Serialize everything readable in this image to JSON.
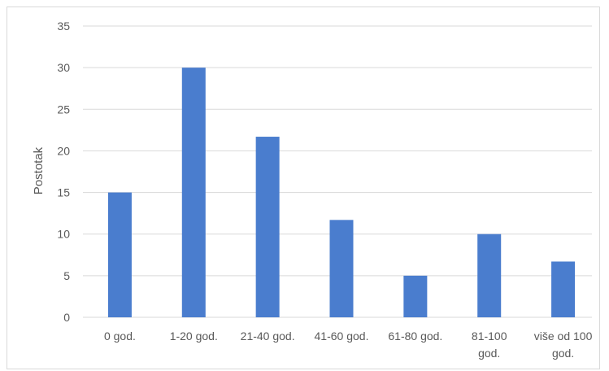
{
  "chart_data": {
    "type": "bar",
    "title": "",
    "xlabel": "",
    "ylabel": "Postotak",
    "ylim": [
      0,
      35
    ],
    "yticks": [
      0,
      5,
      10,
      15,
      20,
      25,
      30,
      35
    ],
    "grid": true,
    "legend": "none",
    "categories": [
      [
        "0 god."
      ],
      [
        "1-20 god."
      ],
      [
        "21-40 god."
      ],
      [
        "41-60 god."
      ],
      [
        "61-80 god."
      ],
      [
        "81-100",
        "god."
      ],
      [
        "više od 100",
        "god."
      ]
    ],
    "series": [
      {
        "values": [
          15,
          30,
          21.7,
          11.7,
          5,
          10,
          6.7
        ]
      }
    ],
    "colors": {
      "bar": "#4a7dce",
      "grid": "#d9d9d9",
      "text": "#595959"
    }
  }
}
